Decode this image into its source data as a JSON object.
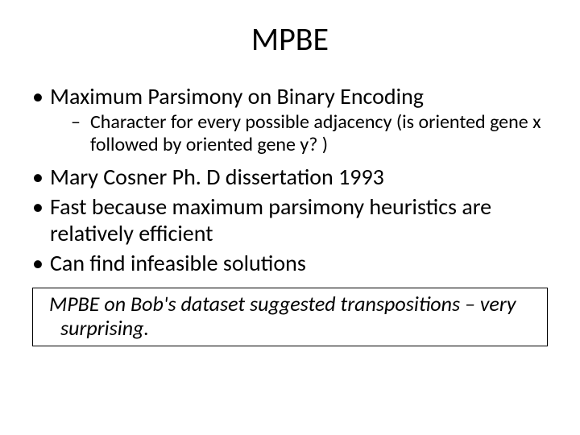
{
  "slide": {
    "title": "MPBE",
    "title_fontsize": 40,
    "body_fontsize": 28,
    "sub_fontsize": 24,
    "callout_fontsize": 26,
    "background_color": "#ffffff",
    "text_color": "#000000",
    "bullets": [
      {
        "text": "Maximum Parsimony on Binary Encoding",
        "sub": [
          "Character for every possible adjacency (is oriented gene x followed by oriented gene y? )"
        ]
      },
      {
        "text": "Mary Cosner Ph. D dissertation 1993"
      },
      {
        "text": "Fast because maximum parsimony heuristics are relatively efficient"
      },
      {
        "text": "Can find infeasible solutions"
      }
    ],
    "callout": "MPBE on Bob's dataset suggested transpositions – very surprising."
  }
}
